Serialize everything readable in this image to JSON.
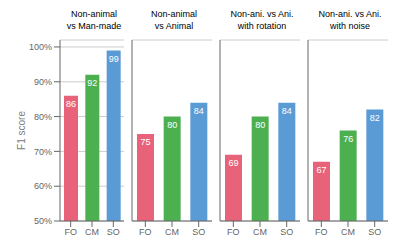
{
  "chart_data": [
    {
      "type": "bar",
      "title": "Non-animal\nvs Man-made",
      "categories": [
        "FO",
        "CM",
        "SO"
      ],
      "values": [
        86,
        92,
        99
      ],
      "colors": [
        "#E8637A",
        "#4CAF50",
        "#5B9BD5"
      ],
      "ylabel": "F1 score",
      "ylim": [
        50,
        102
      ],
      "yticks": [
        {
          "value": 50,
          "label": "50%"
        },
        {
          "value": 60,
          "label": "60%"
        },
        {
          "value": 70,
          "label": "70%"
        },
        {
          "value": 80,
          "label": "80%"
        },
        {
          "value": 90,
          "label": "90%"
        },
        {
          "value": 100,
          "label": "100%"
        }
      ],
      "grid": true,
      "data_labels": true
    },
    {
      "type": "bar",
      "title": "Non-animal\nvs Animal",
      "categories": [
        "FO",
        "CM",
        "SO"
      ],
      "values": [
        75,
        80,
        84
      ],
      "colors": [
        "#E8637A",
        "#4CAF50",
        "#5B9BD5"
      ],
      "ylim": [
        50,
        102
      ],
      "yticks": [
        50,
        60,
        70,
        80,
        90,
        100
      ],
      "grid": true,
      "data_labels": true,
      "tick_labels": "x"
    },
    {
      "type": "bar",
      "title": "Non-ani. vs Ani.\nwith rotation",
      "categories": [
        "FO",
        "CM",
        "SO"
      ],
      "values": [
        69,
        80,
        84
      ],
      "colors": [
        "#E8637A",
        "#4CAF50",
        "#5B9BD5"
      ],
      "ylim": [
        50,
        102
      ],
      "yticks": [
        50,
        60,
        70,
        80,
        90,
        100
      ],
      "grid": true,
      "data_labels": true,
      "tick_labels": "x"
    },
    {
      "type": "bar",
      "title": "Non-ani. vs Ani.\nwith noise",
      "categories": [
        "FO",
        "CM",
        "SO"
      ],
      "values": [
        67,
        76,
        82
      ],
      "colors": [
        "#E8637A",
        "#4CAF50",
        "#5B9BD5"
      ],
      "ylim": [
        50,
        102
      ],
      "yticks": [
        50,
        60,
        70,
        80,
        90,
        100
      ],
      "grid": true,
      "data_labels": true,
      "tick_labels": "x"
    }
  ]
}
